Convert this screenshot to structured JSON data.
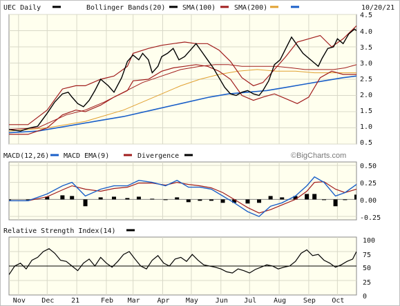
{
  "chart_data": [
    {
      "type": "line",
      "panel": "price",
      "date_label": "10/20/21",
      "legend": [
        {
          "label": "UEC Daily",
          "color": "#000000"
        },
        {
          "label": "Bollinger Bands(20)",
          "color": "#000000"
        },
        {
          "label": "SMA(100)",
          "color": "#a01c1c"
        },
        {
          "label": "SMA(200)",
          "color": "#e0a030"
        },
        {
          "label": "",
          "color": "#1a5fc8"
        }
      ],
      "ylim": [
        0.5,
        4.5
      ],
      "y_ticks": [
        "0.5",
        "1.0",
        "1.5",
        "2.0",
        "2.5",
        "3.0",
        "3.5",
        "4.0",
        "4.5"
      ],
      "x_ticks": [
        "Nov",
        "Dec",
        "21",
        "Feb",
        "Mar",
        "Apr",
        "May",
        "Jun",
        "Jul",
        "Aug",
        "Sep",
        "Oct"
      ],
      "x_tick_days": [
        10,
        40,
        71,
        102,
        130,
        161,
        191,
        222,
        252,
        283,
        314,
        344
      ],
      "x_max_day": 364,
      "grid": true,
      "price": {
        "days": [
          0,
          12,
          22,
          30,
          40,
          48,
          56,
          62,
          66,
          72,
          78,
          84,
          90,
          96,
          104,
          110,
          118,
          124,
          130,
          136,
          140,
          146,
          150,
          156,
          160,
          166,
          172,
          178,
          184,
          190,
          196,
          202,
          208,
          214,
          220,
          226,
          232,
          238,
          244,
          250,
          256,
          262,
          266,
          272,
          278,
          284,
          290,
          296,
          302,
          308,
          314,
          320,
          324,
          328,
          334,
          340,
          344,
          350,
          356,
          362,
          364
        ],
        "values": [
          0.95,
          0.9,
          1.0,
          1.05,
          1.45,
          1.8,
          2.05,
          2.1,
          1.95,
          1.75,
          1.65,
          1.85,
          2.15,
          2.5,
          2.3,
          2.1,
          2.55,
          3.05,
          3.25,
          3.1,
          3.3,
          3.1,
          2.7,
          2.9,
          3.2,
          3.3,
          3.45,
          3.1,
          3.2,
          3.4,
          3.6,
          3.35,
          3.1,
          2.85,
          2.55,
          2.25,
          2.05,
          2.0,
          2.1,
          2.15,
          2.05,
          2.0,
          2.15,
          2.45,
          2.95,
          3.1,
          3.45,
          3.8,
          3.55,
          3.3,
          3.15,
          3.0,
          2.9,
          3.15,
          3.45,
          3.5,
          3.75,
          3.6,
          3.9,
          4.05,
          4.0
        ]
      },
      "bollinger_upper": {
        "days": [
          0,
          20,
          40,
          56,
          70,
          80,
          96,
          110,
          124,
          130,
          146,
          160,
          172,
          184,
          196,
          208,
          220,
          232,
          244,
          256,
          266,
          278,
          290,
          302,
          314,
          326,
          338,
          350,
          364
        ],
        "values": [
          1.1,
          1.1,
          1.55,
          2.2,
          2.3,
          2.3,
          2.5,
          2.6,
          2.9,
          3.3,
          3.45,
          3.55,
          3.6,
          3.65,
          3.6,
          3.6,
          3.4,
          3.05,
          2.55,
          2.3,
          2.4,
          2.8,
          3.2,
          3.65,
          3.75,
          3.85,
          3.5,
          3.75,
          4.15
        ]
      },
      "bollinger_lower": {
        "days": [
          0,
          20,
          40,
          56,
          70,
          80,
          96,
          110,
          124,
          130,
          146,
          160,
          172,
          184,
          196,
          208,
          220,
          232,
          244,
          256,
          266,
          278,
          290,
          302,
          314,
          326,
          338,
          350,
          364
        ],
        "values": [
          0.8,
          0.8,
          1.0,
          1.4,
          1.55,
          1.5,
          1.7,
          1.95,
          2.15,
          2.45,
          2.5,
          2.75,
          2.85,
          2.9,
          2.95,
          2.9,
          2.75,
          2.5,
          2.0,
          1.85,
          1.95,
          2.05,
          1.9,
          1.75,
          1.95,
          2.55,
          2.75,
          2.65,
          2.65
        ]
      },
      "sma100": {
        "days": [
          0,
          30,
          60,
          80,
          100,
          120,
          140,
          160,
          180,
          200,
          216,
          230,
          244,
          256,
          268,
          280,
          296,
          310,
          326,
          340,
          352,
          364
        ],
        "values": [
          0.95,
          1.0,
          1.4,
          1.55,
          1.8,
          2.1,
          2.4,
          2.6,
          2.8,
          2.9,
          2.95,
          2.95,
          2.9,
          2.9,
          2.9,
          2.9,
          2.85,
          2.8,
          2.8,
          2.8,
          2.85,
          2.95
        ]
      },
      "sma200": {
        "days": [
          0,
          40,
          80,
          120,
          140,
          160,
          180,
          200,
          220,
          240,
          260,
          280,
          300,
          320,
          340,
          364
        ],
        "values": [
          0.9,
          1.0,
          1.2,
          1.55,
          1.8,
          2.05,
          2.3,
          2.5,
          2.65,
          2.75,
          2.8,
          2.75,
          2.75,
          2.7,
          2.7,
          2.7
        ]
      },
      "blue_line": {
        "days": [
          0,
          30,
          60,
          90,
          120,
          150,
          180,
          210,
          230,
          250,
          270,
          290,
          310,
          330,
          350,
          364
        ],
        "values": [
          0.85,
          0.9,
          1.05,
          1.2,
          1.35,
          1.55,
          1.75,
          1.95,
          2.05,
          2.1,
          2.15,
          2.25,
          2.35,
          2.45,
          2.55,
          2.6
        ]
      }
    },
    {
      "type": "line",
      "panel": "macd",
      "legend": [
        {
          "label": "MACD(12,26)",
          "color": "#000000"
        },
        {
          "label": "MACD EMA(9)",
          "color": "#1a5fc8"
        },
        {
          "label": "Divergence",
          "color": "#a01c1c"
        }
      ],
      "watermark": "©BigCharts.com",
      "ylim": [
        -0.3,
        0.55
      ],
      "y_ticks": [
        "0.50",
        "0.25",
        "0.00",
        "-0.25"
      ],
      "macd": {
        "days": [
          0,
          20,
          40,
          56,
          66,
          80,
          96,
          110,
          124,
          136,
          150,
          164,
          176,
          188,
          200,
          212,
          224,
          236,
          250,
          262,
          274,
          286,
          300,
          312,
          320,
          330,
          342,
          352,
          364
        ],
        "values": [
          -0.02,
          -0.02,
          0.08,
          0.2,
          0.25,
          0.05,
          0.15,
          0.2,
          0.2,
          0.28,
          0.25,
          0.2,
          0.28,
          0.18,
          0.18,
          0.15,
          0.05,
          -0.05,
          -0.18,
          -0.25,
          -0.1,
          -0.05,
          0.05,
          0.2,
          0.33,
          0.25,
          0.05,
          0.1,
          0.22
        ]
      },
      "signal": {
        "days": [
          0,
          20,
          40,
          56,
          66,
          80,
          96,
          110,
          124,
          136,
          150,
          164,
          176,
          188,
          200,
          212,
          224,
          236,
          250,
          262,
          274,
          286,
          300,
          312,
          320,
          330,
          342,
          352,
          364
        ],
        "values": [
          -0.02,
          -0.02,
          0.04,
          0.14,
          0.2,
          0.15,
          0.12,
          0.16,
          0.18,
          0.24,
          0.24,
          0.21,
          0.25,
          0.22,
          0.2,
          0.17,
          0.1,
          0.0,
          -0.12,
          -0.2,
          -0.15,
          -0.08,
          0.0,
          0.12,
          0.25,
          0.26,
          0.15,
          0.1,
          0.15
        ]
      },
      "divergence": {
        "days": [
          0,
          20,
          40,
          56,
          66,
          80,
          96,
          110,
          124,
          136,
          150,
          164,
          176,
          188,
          200,
          212,
          224,
          236,
          250,
          262,
          274,
          286,
          300,
          312,
          320,
          330,
          342,
          352,
          364
        ],
        "values": [
          0.0,
          0.0,
          0.04,
          0.06,
          0.05,
          -0.1,
          0.03,
          0.04,
          0.02,
          0.04,
          0.01,
          -0.01,
          0.03,
          -0.04,
          -0.02,
          -0.02,
          -0.05,
          -0.05,
          -0.06,
          -0.05,
          0.05,
          0.03,
          0.05,
          0.08,
          0.08,
          -0.01,
          -0.1,
          0.0,
          0.07
        ]
      }
    },
    {
      "type": "line",
      "panel": "rsi",
      "legend": [
        {
          "label": "Relative Strength Index(14)",
          "color": "#000000"
        }
      ],
      "ylim": [
        0,
        100
      ],
      "y_ticks": [
        "100",
        "75",
        "50",
        "25",
        "0"
      ],
      "reference_line": 50,
      "rsi": {
        "days": [
          0,
          6,
          12,
          18,
          24,
          30,
          36,
          42,
          48,
          54,
          60,
          66,
          72,
          78,
          84,
          90,
          96,
          102,
          108,
          114,
          120,
          126,
          132,
          138,
          144,
          150,
          156,
          162,
          168,
          174,
          180,
          186,
          192,
          198,
          204,
          210,
          216,
          222,
          228,
          234,
          240,
          246,
          252,
          258,
          264,
          270,
          276,
          282,
          288,
          294,
          300,
          306,
          312,
          318,
          324,
          330,
          336,
          342,
          348,
          354,
          360,
          364
        ],
        "values": [
          35,
          50,
          55,
          45,
          60,
          65,
          75,
          80,
          72,
          60,
          58,
          50,
          42,
          55,
          62,
          50,
          65,
          55,
          48,
          58,
          70,
          75,
          62,
          50,
          45,
          60,
          68,
          55,
          50,
          62,
          65,
          58,
          70,
          60,
          52,
          50,
          48,
          45,
          40,
          38,
          45,
          42,
          38,
          44,
          48,
          52,
          50,
          45,
          48,
          50,
          58,
          72,
          78,
          68,
          70,
          60,
          55,
          48,
          52,
          58,
          62,
          75
        ]
      }
    }
  ]
}
